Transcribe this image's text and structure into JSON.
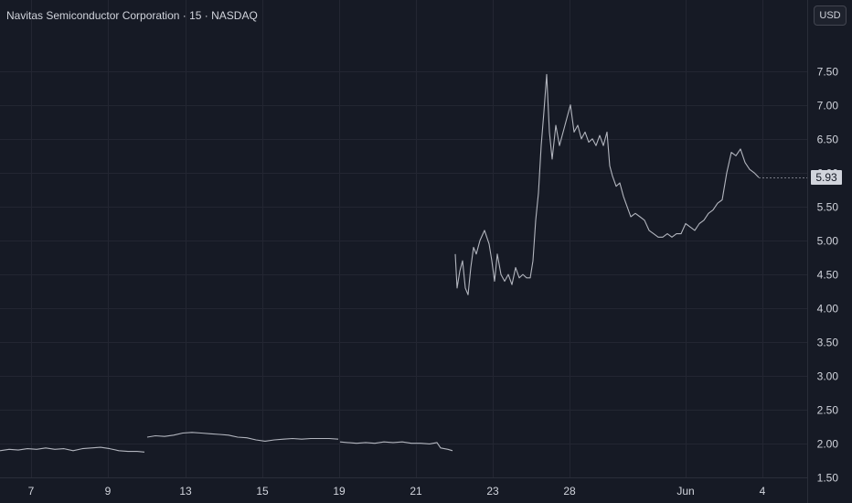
{
  "header": {
    "title": "Navitas Semiconductor Corporation · 15 · NASDAQ",
    "currency_label": "USD"
  },
  "chart_data": {
    "type": "line",
    "title": "Navitas Semiconductor Corporation · 15 · NASDAQ",
    "ylim": [
      1.25,
      7.9
    ],
    "y_ticks": [
      1.5,
      2.0,
      2.5,
      3.0,
      3.5,
      4.0,
      4.5,
      5.0,
      5.5,
      6.0,
      6.5,
      7.0,
      7.5
    ],
    "y_tick_labels": [
      "1.50",
      "2.00",
      "2.50",
      "3.00",
      "3.50",
      "4.00",
      "4.50",
      "5.00",
      "5.50",
      "6.00",
      "6.50",
      "7.00",
      "7.50"
    ],
    "x_tick_labels": [
      "7",
      "9",
      "13",
      "15",
      "19",
      "21",
      "23",
      "28",
      "Jun",
      "4"
    ],
    "last_price": 5.93,
    "last_price_label": "5.93",
    "grid": true,
    "colors": {
      "background": "#161a25",
      "grid": "#232632",
      "line": "#b2b5be",
      "text": "#d1d4dc"
    },
    "series": [
      {
        "segments": [
          [
            [
              0,
              1.9
            ],
            [
              10,
              1.92
            ],
            [
              20,
              1.91
            ],
            [
              30,
              1.93
            ],
            [
              40,
              1.92
            ],
            [
              50,
              1.94
            ],
            [
              60,
              1.92
            ],
            [
              70,
              1.93
            ],
            [
              80,
              1.9
            ],
            [
              90,
              1.93
            ],
            [
              100,
              1.94
            ],
            [
              110,
              1.95
            ],
            [
              120,
              1.93
            ],
            [
              130,
              1.9
            ],
            [
              140,
              1.89
            ],
            [
              150,
              1.89
            ],
            [
              158,
              1.88
            ]
          ],
          [
            [
              161,
              2.1
            ],
            [
              170,
              2.12
            ],
            [
              180,
              2.11
            ],
            [
              190,
              2.13
            ],
            [
              200,
              2.16
            ],
            [
              210,
              2.17
            ],
            [
              220,
              2.16
            ],
            [
              230,
              2.15
            ],
            [
              240,
              2.14
            ],
            [
              250,
              2.13
            ],
            [
              260,
              2.1
            ],
            [
              270,
              2.09
            ],
            [
              280,
              2.06
            ],
            [
              290,
              2.04
            ],
            [
              300,
              2.06
            ],
            [
              310,
              2.07
            ],
            [
              320,
              2.08
            ],
            [
              330,
              2.07
            ],
            [
              340,
              2.08
            ],
            [
              350,
              2.08
            ],
            [
              360,
              2.08
            ],
            [
              370,
              2.07
            ]
          ],
          [
            [
              372,
              2.03
            ],
            [
              380,
              2.02
            ],
            [
              390,
              2.01
            ],
            [
              400,
              2.02
            ],
            [
              410,
              2.01
            ],
            [
              420,
              2.03
            ],
            [
              430,
              2.02
            ],
            [
              440,
              2.03
            ],
            [
              450,
              2.01
            ],
            [
              460,
              2.01
            ],
            [
              470,
              2.0
            ],
            [
              478,
              2.02
            ],
            [
              482,
              1.94
            ],
            [
              490,
              1.92
            ],
            [
              495,
              1.9
            ]
          ],
          [
            [
              498,
              4.8
            ],
            [
              500,
              4.3
            ],
            [
              503,
              4.55
            ],
            [
              506,
              4.7
            ],
            [
              509,
              4.3
            ],
            [
              512,
              4.2
            ],
            [
              515,
              4.6
            ],
            [
              518,
              4.9
            ],
            [
              521,
              4.8
            ],
            [
              525,
              5.0
            ],
            [
              530,
              5.15
            ],
            [
              535,
              4.95
            ],
            [
              538,
              4.7
            ],
            [
              541,
              4.4
            ],
            [
              544,
              4.8
            ],
            [
              548,
              4.5
            ],
            [
              552,
              4.4
            ],
            [
              556,
              4.5
            ],
            [
              560,
              4.35
            ],
            [
              564,
              4.6
            ],
            [
              568,
              4.45
            ],
            [
              572,
              4.5
            ],
            [
              576,
              4.45
            ],
            [
              580,
              4.45
            ],
            [
              583,
              4.7
            ],
            [
              586,
              5.3
            ],
            [
              589,
              5.7
            ],
            [
              592,
              6.4
            ],
            [
              595,
              6.9
            ],
            [
              598,
              7.45
            ],
            [
              601,
              6.6
            ],
            [
              604,
              6.2
            ],
            [
              608,
              6.7
            ],
            [
              612,
              6.4
            ],
            [
              616,
              6.6
            ],
            [
              620,
              6.8
            ],
            [
              624,
              7.0
            ],
            [
              628,
              6.6
            ],
            [
              632,
              6.7
            ],
            [
              636,
              6.5
            ],
            [
              640,
              6.6
            ],
            [
              644,
              6.45
            ],
            [
              648,
              6.5
            ],
            [
              652,
              6.4
            ],
            [
              656,
              6.55
            ],
            [
              660,
              6.4
            ],
            [
              664,
              6.6
            ],
            [
              667,
              6.1
            ],
            [
              670,
              5.95
            ],
            [
              674,
              5.8
            ],
            [
              678,
              5.85
            ],
            [
              682,
              5.65
            ],
            [
              686,
              5.5
            ],
            [
              690,
              5.35
            ],
            [
              695,
              5.4
            ],
            [
              700,
              5.35
            ],
            [
              705,
              5.3
            ],
            [
              710,
              5.15
            ],
            [
              715,
              5.1
            ],
            [
              720,
              5.05
            ],
            [
              725,
              5.05
            ],
            [
              730,
              5.1
            ],
            [
              735,
              5.05
            ],
            [
              740,
              5.1
            ],
            [
              745,
              5.1
            ],
            [
              750,
              5.25
            ],
            [
              755,
              5.2
            ],
            [
              760,
              5.15
            ],
            [
              765,
              5.25
            ],
            [
              770,
              5.3
            ],
            [
              775,
              5.4
            ],
            [
              780,
              5.45
            ],
            [
              785,
              5.55
            ],
            [
              790,
              5.6
            ],
            [
              795,
              6.0
            ],
            [
              800,
              6.3
            ],
            [
              805,
              6.25
            ],
            [
              810,
              6.35
            ],
            [
              815,
              6.15
            ],
            [
              820,
              6.05
            ],
            [
              825,
              6.0
            ],
            [
              830,
              5.93
            ]
          ]
        ]
      }
    ]
  }
}
